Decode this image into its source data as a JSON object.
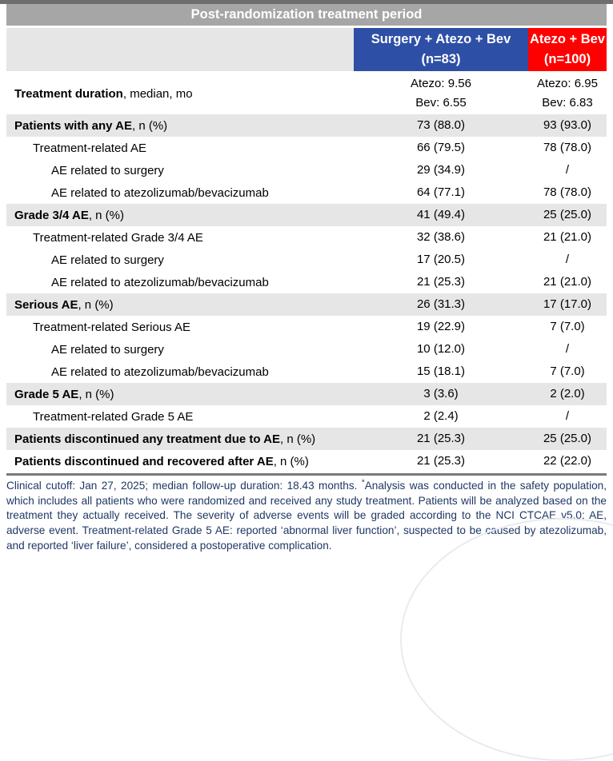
{
  "table": {
    "title": "Post-randomization treatment period",
    "columns": [
      {
        "line1": "Surgery + Atezo + Bev",
        "line2": "(n=83)"
      },
      {
        "line1": "Atezo + Bev",
        "line2": "(n=100)"
      }
    ],
    "rows": [
      {
        "indent": 0,
        "shaded": false,
        "tall": true,
        "label_bold": "Treatment duration",
        "label_rest": ", median, mo",
        "col1": [
          "Atezo: 9.56",
          "Bev: 6.55"
        ],
        "col2": [
          "Atezo: 6.95",
          "Bev: 6.83"
        ]
      },
      {
        "indent": 0,
        "shaded": true,
        "tall": false,
        "label_bold": "Patients with any AE",
        "label_rest": ", n (%)",
        "col1": "73 (88.0)",
        "col2": "93 (93.0)"
      },
      {
        "indent": 1,
        "shaded": false,
        "tall": false,
        "label_bold": "",
        "label_rest": "Treatment-related AE",
        "col1": "66 (79.5)",
        "col2": "78 (78.0)"
      },
      {
        "indent": 2,
        "shaded": false,
        "tall": false,
        "label_bold": "",
        "label_rest": "AE related to surgery",
        "col1": "29 (34.9)",
        "col2": "/"
      },
      {
        "indent": 2,
        "shaded": false,
        "tall": false,
        "label_bold": "",
        "label_rest": "AE related to atezolizumab/bevacizumab",
        "col1": "64 (77.1)",
        "col2": "78 (78.0)"
      },
      {
        "indent": 0,
        "shaded": true,
        "tall": false,
        "label_bold": "Grade 3/4 AE",
        "label_rest": ", n (%)",
        "col1": "41 (49.4)",
        "col2": "25 (25.0)"
      },
      {
        "indent": 1,
        "shaded": false,
        "tall": false,
        "label_bold": "",
        "label_rest": "Treatment-related Grade 3/4 AE",
        "col1": "32 (38.6)",
        "col2": "21 (21.0)"
      },
      {
        "indent": 2,
        "shaded": false,
        "tall": false,
        "label_bold": "",
        "label_rest": "AE related to surgery",
        "col1": "17 (20.5)",
        "col2": "/"
      },
      {
        "indent": 2,
        "shaded": false,
        "tall": false,
        "label_bold": "",
        "label_rest": "AE related to atezolizumab/bevacizumab",
        "col1": "21 (25.3)",
        "col2": "21 (21.0)"
      },
      {
        "indent": 0,
        "shaded": true,
        "tall": false,
        "label_bold": "Serious AE",
        "label_rest": ", n (%)",
        "col1": "26 (31.3)",
        "col2": "17 (17.0)"
      },
      {
        "indent": 1,
        "shaded": false,
        "tall": false,
        "label_bold": "",
        "label_rest": "Treatment-related Serious AE",
        "col1": "19 (22.9)",
        "col2": "7 (7.0)"
      },
      {
        "indent": 2,
        "shaded": false,
        "tall": false,
        "label_bold": "",
        "label_rest": "AE related to surgery",
        "col1": "10 (12.0)",
        "col2": "/"
      },
      {
        "indent": 2,
        "shaded": false,
        "tall": false,
        "label_bold": "",
        "label_rest": "AE related to atezolizumab/bevacizumab",
        "col1": "15 (18.1)",
        "col2": "7 (7.0)"
      },
      {
        "indent": 0,
        "shaded": true,
        "tall": false,
        "label_bold": "Grade 5 AE",
        "label_rest": ", n (%)",
        "col1": "3 (3.6)",
        "col2": "2 (2.0)"
      },
      {
        "indent": 1,
        "shaded": false,
        "tall": false,
        "label_bold": "",
        "label_rest": "Treatment-related Grade 5 AE",
        "col1": "2 (2.4)",
        "col2": "/"
      },
      {
        "indent": 0,
        "shaded": true,
        "tall": false,
        "label_bold": "Patients discontinued any treatment due to AE",
        "label_rest": ", n (%)",
        "col1": "21 (25.3)",
        "col2": "25 (25.0)"
      },
      {
        "indent": 0,
        "shaded": false,
        "tall": false,
        "label_bold": "Patients discontinued and recovered after AE",
        "label_rest": ", n (%)",
        "col1": "21 (25.3)",
        "col2": "22 (22.0)"
      }
    ]
  },
  "footnote": {
    "part1": "Clinical cutoff: Jan 27, 2025; median follow-up duration: 18.43 months. ",
    "asterisk": "*",
    "part2": "Analysis was conducted in the safety population, which includes all patients who were randomized and received any study treatment. Patients will be analyzed based on the treatment they actually received. The severity of adverse events will be graded according to the NCI CTCAE v5.0; AE, adverse event. Treatment-related Grade 5 AE: reported ‘abnormal liver function’, suspected to be caused by atezolizumab, and reported ‘liver failure’, considered a postoperative complication."
  },
  "colors": {
    "title_bar_bg": "#a6a6a6",
    "surgery_column_bg": "#2e4fa6",
    "atezo_bev_column_bg": "#ff0000",
    "shaded_row_bg": "#e7e6e6",
    "footnote_text": "#1f3864",
    "top_strip": "#6e6e6e",
    "bottom_border": "#7a7a7a"
  }
}
